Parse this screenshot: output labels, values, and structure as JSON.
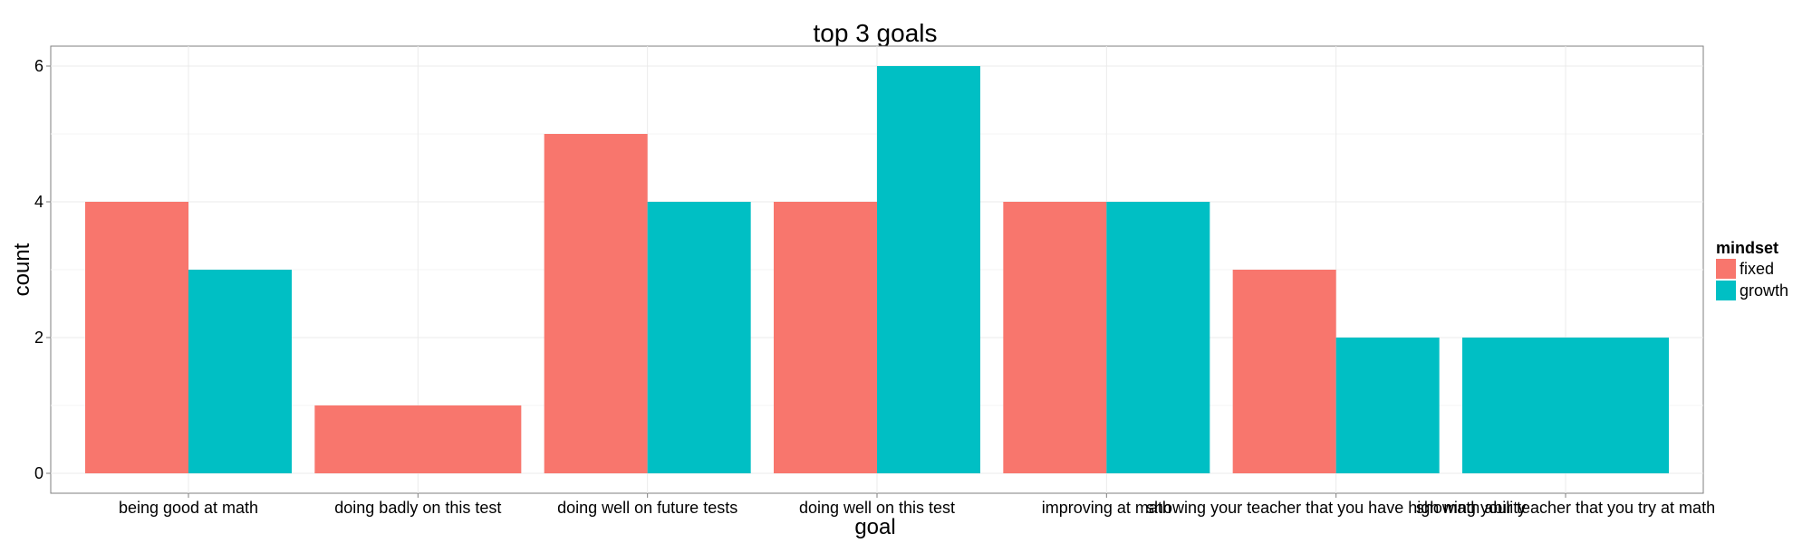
{
  "chart_data": {
    "type": "bar",
    "title": "top 3 goals",
    "xlabel": "goal",
    "ylabel": "count",
    "categories": [
      "being good at math",
      "doing badly on this test",
      "doing well on future tests",
      "doing well on this test",
      "improving at math",
      "showing your teacher that you have high math ability",
      "showing your teacher that you try at math"
    ],
    "series": [
      {
        "name": "fixed",
        "color": "#F8766D",
        "values": [
          4,
          1,
          5,
          4,
          4,
          3,
          0
        ]
      },
      {
        "name": "growth",
        "color": "#00BFC4",
        "values": [
          3,
          0,
          4,
          6,
          4,
          2,
          2
        ]
      }
    ],
    "ylim": [
      0,
      6.3
    ],
    "yticks": [
      0,
      2,
      4,
      6
    ],
    "grid": true,
    "legend": {
      "title": "mindset",
      "position": "right"
    }
  }
}
